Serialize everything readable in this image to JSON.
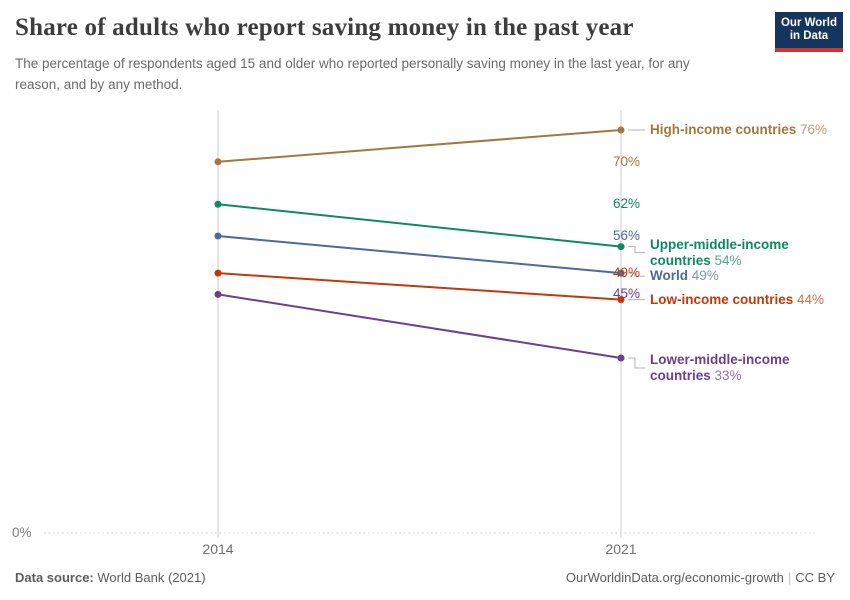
{
  "header": {
    "title": "Share of adults who report saving money in the past year",
    "subtitle": "The percentage of respondents aged 15 and older who reported personally saving money in the last year, for any reason, and by any method.",
    "logo": {
      "line1": "Our World",
      "line2": "in Data"
    }
  },
  "chart_data": {
    "type": "line",
    "subtype": "slope-chart",
    "title": "Share of adults who report saving money in the past year",
    "x_labels": [
      "2014",
      "2021"
    ],
    "baseline_label": "0%",
    "value_suffix": "%",
    "ylim": [
      0,
      80
    ],
    "grid": "zero-baseline-dotted-only",
    "legend_position": "inline-right-labels",
    "series": [
      {
        "name": "High-income countries",
        "values": [
          70,
          76
        ],
        "color": "#A1793F"
      },
      {
        "name": "Upper-middle-income countries",
        "values": [
          62,
          54
        ],
        "color": "#0E8A63"
      },
      {
        "name": "World",
        "values": [
          56,
          49
        ],
        "color": "#4C6A9C"
      },
      {
        "name": "Low-income countries",
        "values": [
          49,
          44
        ],
        "color": "#BE3B09"
      },
      {
        "name": "Lower-middle-income countries",
        "values": [
          45,
          33
        ],
        "color": "#6D3E91"
      }
    ],
    "colors": {
      "axis": "#cbcbcb",
      "gridline": "#d6d6d6",
      "connector": "#b3b3b3"
    }
  },
  "footer": {
    "source_label": "Data source:",
    "source_value": "World Bank (2021)",
    "link": "OurWorldinData.org/economic-growth",
    "separator": "|",
    "license": "CC BY"
  }
}
